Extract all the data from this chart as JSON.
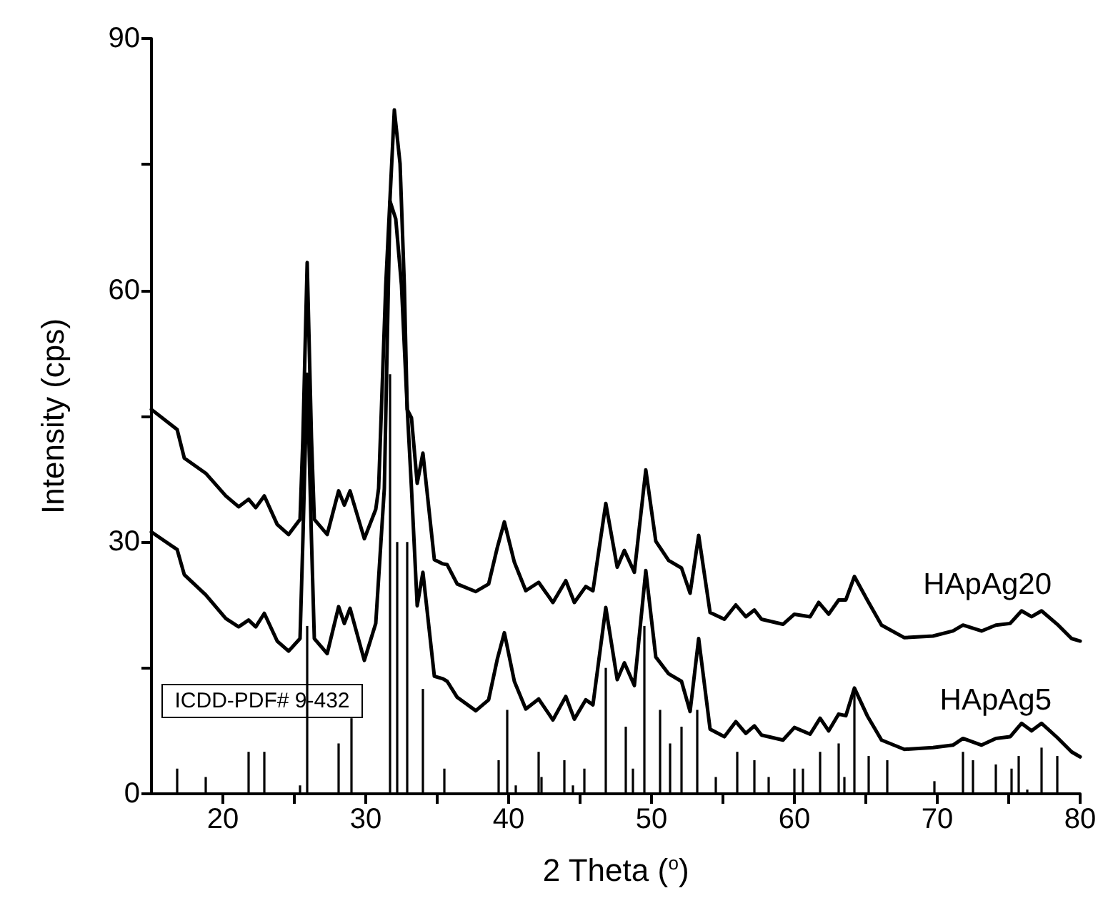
{
  "chart_data": {
    "type": "line",
    "xlabel": "2 Theta ($^{o}$)",
    "ylabel": "Intensity (cps)",
    "xlim": [
      15,
      80
    ],
    "xticks": [
      20,
      {
        "value": 25,
        "label": null
      },
      30,
      {
        "value": 35,
        "label": null
      },
      40,
      {
        "value": 45,
        "label": null
      },
      50,
      {
        "value": 55,
        "label": null
      },
      60,
      {
        "value": 65,
        "label": null
      },
      70,
      {
        "value": 75,
        "label": null
      },
      80
    ],
    "ylim": [
      0,
      90
    ],
    "yticks": [
      0,
      {
        "value": 15,
        "label": null
      },
      30,
      {
        "value": 45,
        "label": null
      },
      60,
      {
        "value": 75,
        "label": null
      },
      90
    ],
    "grid": false,
    "legend": false,
    "marker": "none",
    "line_style": "solid",
    "series": [
      {
        "name": "HApAg20",
        "color": "#000000",
        "x": [
          15,
          16.8,
          17.3,
          18.8,
          20.2,
          21.1,
          21.8,
          22.3,
          22.9,
          23.8,
          24.6,
          25.4,
          25.6,
          25.9,
          26.2,
          26.4,
          27.3,
          28.1,
          28.5,
          28.9,
          29.9,
          30.7,
          30.9,
          31.4,
          32.0,
          32.4,
          32.7,
          32.9,
          33.2,
          33.6,
          34.0,
          34.8,
          35.4,
          35.7,
          36.4,
          37.7,
          38.6,
          39.2,
          39.7,
          40.4,
          41.2,
          42.1,
          43.1,
          44.0,
          44.6,
          45.4,
          45.9,
          46.8,
          47.6,
          48.1,
          48.8,
          49.6,
          50.3,
          51.2,
          52.1,
          52.7,
          53.3,
          54.1,
          55.1,
          55.9,
          56.6,
          57.2,
          57.7,
          59.2,
          60.0,
          61.1,
          61.7,
          62.4,
          63.1,
          63.6,
          64.2,
          65.1,
          66.1,
          67.7,
          69.7,
          71.1,
          71.8,
          73.1,
          74.1,
          75.1,
          75.9,
          76.6,
          77.3,
          78.4,
          79.4,
          80.0
        ],
        "values": [
          45.8,
          43.4,
          40,
          38.2,
          35.5,
          34.2,
          35.1,
          34.1,
          35.5,
          32.1,
          30.9,
          32.7,
          42.4,
          63.3,
          42.4,
          32.7,
          30.9,
          36.1,
          34.4,
          36.1,
          30.4,
          33.9,
          36.4,
          60.6,
          81.5,
          75.1,
          60.6,
          45.8,
          44.8,
          37.0,
          40.6,
          27.9,
          27.4,
          27.3,
          25.0,
          24.1,
          25.0,
          29.3,
          32.4,
          27.6,
          24.2,
          25.2,
          22.8,
          25.4,
          22.8,
          24.7,
          24.2,
          34.6,
          27.0,
          29.0,
          26.4,
          38.6,
          30.1,
          27.8,
          26.9,
          23.9,
          30.8,
          21.6,
          20.8,
          22.5,
          21.1,
          21.9,
          20.8,
          20.2,
          21.4,
          21.1,
          22.8,
          21.4,
          23.1,
          23.1,
          25.9,
          23.1,
          20.1,
          18.6,
          18.8,
          19.4,
          20.1,
          19.4,
          20.1,
          20.3,
          21.8,
          21.1,
          21.8,
          20.2,
          18.5,
          18.2
        ]
      },
      {
        "name": "HApAg5",
        "color": "#000000",
        "x": [
          15,
          16.8,
          17.3,
          18.8,
          20.2,
          21.1,
          21.8,
          22.3,
          22.9,
          23.8,
          24.6,
          25.4,
          25.6,
          25.9,
          26.2,
          26.4,
          27.3,
          28.1,
          28.5,
          28.9,
          29.9,
          30.7,
          31.3,
          31.7,
          32.1,
          32.5,
          32.9,
          33.2,
          33.6,
          34.0,
          34.8,
          35.4,
          35.7,
          36.4,
          37.7,
          38.6,
          39.2,
          39.7,
          40.4,
          41.2,
          42.1,
          43.1,
          44.0,
          44.6,
          45.4,
          45.9,
          46.8,
          47.6,
          48.1,
          48.8,
          49.6,
          50.3,
          51.2,
          52.1,
          52.7,
          53.3,
          54.1,
          55.1,
          55.9,
          56.6,
          57.2,
          57.7,
          59.2,
          60.0,
          61.1,
          61.8,
          62.4,
          63.1,
          63.6,
          64.2,
          65.1,
          66.1,
          67.7,
          69.7,
          71.1,
          71.8,
          73.1,
          74.1,
          75.1,
          75.9,
          76.6,
          77.3,
          78.4,
          79.4,
          80.0
        ],
        "values": [
          31.2,
          29.1,
          26.1,
          23.7,
          20.9,
          19.9,
          20.7,
          19.9,
          21.5,
          18.2,
          17.0,
          18.5,
          30.3,
          50,
          30.3,
          18.5,
          16.7,
          22.3,
          20.3,
          22.1,
          15.9,
          20.3,
          36.4,
          70.6,
          68.5,
          60.6,
          46.0,
          36.4,
          22.4,
          26.4,
          14.0,
          13.7,
          13.4,
          11.5,
          9.9,
          11.2,
          16.0,
          19.2,
          13.4,
          10.1,
          11.3,
          8.8,
          11.6,
          8.9,
          11.2,
          10.6,
          22.2,
          13.6,
          15.6,
          12.9,
          26.6,
          16.3,
          14.3,
          13.4,
          9.8,
          18.5,
          7.7,
          6.8,
          8.6,
          7.2,
          8.1,
          7.0,
          6.4,
          7.9,
          7.1,
          9.0,
          7.5,
          9.5,
          9.3,
          12.6,
          9.3,
          6.4,
          5.3,
          5.5,
          5.8,
          6.6,
          5.8,
          6.6,
          6.8,
          8.4,
          7.5,
          8.4,
          6.7,
          5.0,
          4.4
        ]
      },
      {
        "name": "ICDD-PDF# 9-432",
        "type": "bar",
        "color": "#000000",
        "x": [
          16.8,
          18.8,
          21.8,
          22.9,
          25.4,
          25.9,
          28.1,
          29.0,
          31.7,
          32.2,
          32.9,
          34.0,
          35.5,
          39.3,
          39.9,
          40.5,
          42.1,
          42.3,
          43.9,
          44.5,
          45.3,
          46.8,
          48.2,
          48.7,
          49.5,
          50.6,
          51.3,
          52.1,
          53.2,
          54.5,
          56.0,
          57.2,
          58.2,
          60.0,
          60.6,
          61.8,
          63.1,
          63.5,
          64.2,
          65.2,
          66.5,
          69.8,
          71.8,
          72.5,
          74.1,
          75.2,
          75.7,
          76.3,
          77.3,
          78.4
        ],
        "values": [
          3,
          2,
          5,
          5,
          1,
          20,
          6,
          9,
          50,
          30,
          30,
          12.5,
          3,
          4,
          10,
          1,
          5,
          2,
          4,
          1,
          3,
          15,
          8,
          3,
          20,
          10,
          6,
          8,
          10,
          2,
          5,
          4,
          2,
          3,
          3,
          5,
          6,
          2,
          12,
          4.5,
          4,
          1.5,
          5,
          4,
          3.5,
          3,
          4.5,
          0.5,
          5.5,
          4.5
        ]
      }
    ]
  }
}
